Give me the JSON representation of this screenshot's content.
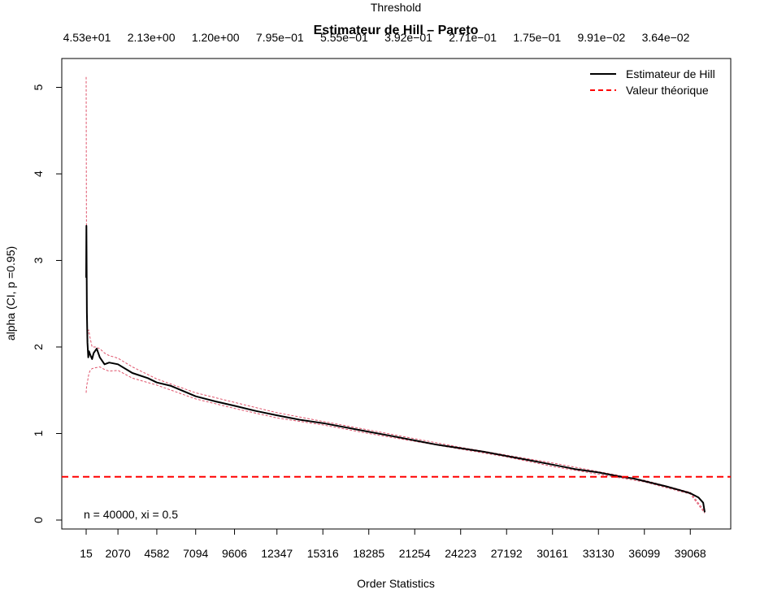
{
  "chart_data": {
    "type": "line",
    "title": "Estimateur de Hill – Pareto",
    "top_axis_label": "Threshold",
    "xlabel": "Order Statistics",
    "ylabel": "alpha (CI, p =0.95)",
    "annotation": "n = 40000, xi = 0.5",
    "xlim": [
      15,
      40000
    ],
    "ylim": [
      0,
      5
    ],
    "x_ticks": [
      15,
      2070,
      4582,
      7094,
      9606,
      12347,
      15316,
      18285,
      21254,
      24223,
      27192,
      30161,
      33130,
      36099,
      39068
    ],
    "x_tick_labels": [
      "15",
      "2070",
      "4582",
      "7094",
      "9606",
      "12347",
      "15316",
      "18285",
      "21254",
      "24223",
      "27192",
      "30161",
      "33130",
      "36099",
      "39068"
    ],
    "threshold_tick_labels": [
      "4.53e+01",
      "2.13e+00",
      "1.20e+00",
      "7.95e−01",
      "5.55e−01",
      "3.92e−01",
      "2.71e−01",
      "1.75e−01",
      "9.91e−02",
      "3.64e−02"
    ],
    "y_ticks": [
      0,
      1,
      2,
      3,
      4,
      5
    ],
    "y_tick_labels": [
      "0",
      "1",
      "2",
      "3",
      "4",
      "5"
    ],
    "legend_position": "top-right",
    "series": [
      {
        "name": "Estimateur de Hill",
        "color": "#000000",
        "style": "solid",
        "x": [
          15,
          30,
          60,
          100,
          150,
          200,
          300,
          400,
          500,
          700,
          900,
          1200,
          1500,
          2070,
          3000,
          4000,
          4582,
          5500,
          6300,
          7094,
          8400,
          9606,
          11000,
          12347,
          13800,
          15316,
          16800,
          18285,
          19800,
          21254,
          22700,
          24223,
          25700,
          27192,
          28700,
          30161,
          31600,
          33130,
          34600,
          35400,
          36099,
          37500,
          38500,
          39068,
          39600,
          39900,
          40000
        ],
        "y": [
          2.8,
          3.4,
          2.4,
          2.05,
          1.88,
          1.95,
          1.9,
          1.86,
          1.93,
          1.98,
          1.88,
          1.8,
          1.82,
          1.8,
          1.7,
          1.64,
          1.59,
          1.55,
          1.49,
          1.43,
          1.37,
          1.32,
          1.26,
          1.21,
          1.16,
          1.12,
          1.07,
          1.02,
          0.97,
          0.92,
          0.87,
          0.83,
          0.79,
          0.74,
          0.69,
          0.64,
          0.59,
          0.55,
          0.5,
          0.48,
          0.45,
          0.39,
          0.34,
          0.31,
          0.26,
          0.2,
          0.09
        ]
      },
      {
        "name": "Valeur théorique",
        "color": "#ff0000",
        "style": "dashed",
        "x": [
          0,
          40000
        ],
        "y": [
          0.5,
          0.5
        ]
      }
    ],
    "confidence_band": {
      "color": "#df536b",
      "x": [
        15,
        30,
        50,
        80,
        120,
        180,
        250,
        400,
        600,
        900,
        1200,
        1500,
        2070,
        3000,
        4582,
        7094,
        9606,
        12347,
        15316,
        18285,
        21254,
        24223,
        27192,
        30161,
        33130,
        36099,
        39068,
        40000
      ],
      "upper": [
        5.12,
        3.63,
        2.55,
        2.2,
        2.15,
        2.2,
        2.12,
        2.0,
        2.0,
        1.98,
        1.93,
        1.9,
        1.87,
        1.77,
        1.63,
        1.47,
        1.36,
        1.24,
        1.14,
        1.04,
        0.94,
        0.84,
        0.75,
        0.66,
        0.56,
        0.46,
        0.32,
        0.1
      ],
      "lower": [
        1.47,
        1.52,
        1.55,
        1.58,
        1.62,
        1.68,
        1.72,
        1.75,
        1.76,
        1.77,
        1.74,
        1.72,
        1.73,
        1.64,
        1.56,
        1.4,
        1.29,
        1.18,
        1.1,
        1.0,
        0.91,
        0.82,
        0.73,
        0.62,
        0.53,
        0.44,
        0.3,
        0.08
      ]
    }
  }
}
